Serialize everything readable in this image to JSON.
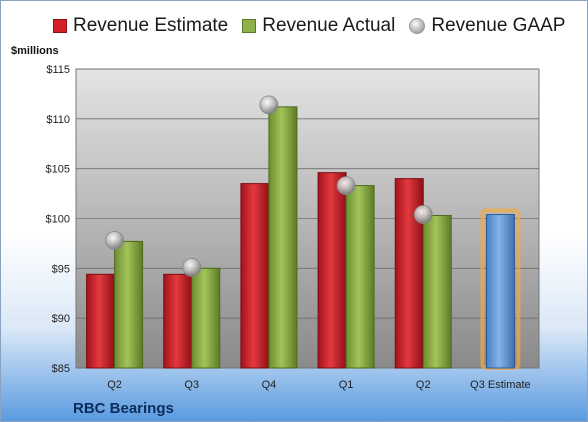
{
  "chart_data": {
    "type": "bar",
    "categories": [
      "Q2",
      "Q3",
      "Q4",
      "Q1",
      "Q2",
      "Q3 Estimate"
    ],
    "series": [
      {
        "name": "Revenue Estimate",
        "values": [
          94.4,
          94.4,
          103.5,
          104.6,
          104.0,
          null
        ]
      },
      {
        "name": "Revenue Actual",
        "values": [
          97.7,
          95.0,
          111.2,
          103.3,
          100.3,
          100.4
        ]
      },
      {
        "name": "Revenue GAAP",
        "values": [
          97.8,
          95.1,
          111.4,
          103.3,
          100.4,
          null
        ]
      }
    ],
    "highlighted_category": "Q3 Estimate",
    "highlighted_value": 100.4,
    "ylabel": "$millions",
    "ylim": [
      85,
      115
    ],
    "yticks": [
      85,
      90,
      95,
      100,
      105,
      110,
      115
    ],
    "ytick_labels": [
      "$85",
      "$90",
      "$95",
      "$100",
      "$105",
      "$110",
      "$115"
    ],
    "grid": true,
    "legend_position": "top"
  },
  "company": "RBC Bearings",
  "colors": {
    "estimate": "#d42027",
    "actual": "#8fb14a",
    "highlight": "#6a9fdc",
    "highlight_glow": "#f4a940"
  }
}
